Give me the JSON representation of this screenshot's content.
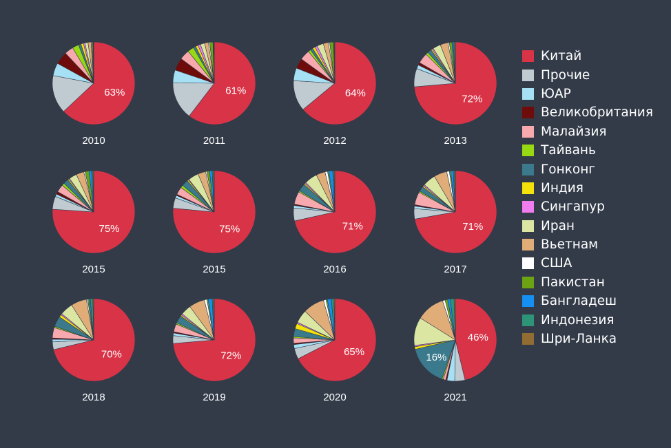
{
  "legend": {
    "items": [
      {
        "name": "Китай",
        "color": "#d93347"
      },
      {
        "name": "Прочие",
        "color": "#bfcbd1"
      },
      {
        "name": "ЮАР",
        "color": "#a6e0f5"
      },
      {
        "name": "Великобритания",
        "color": "#6e0c0c"
      },
      {
        "name": "Малайзия",
        "color": "#f7a9ad"
      },
      {
        "name": "Тайвань",
        "color": "#97d912"
      },
      {
        "name": "Гонконг",
        "color": "#3b7a8c"
      },
      {
        "name": "Индия",
        "color": "#f5e20a"
      },
      {
        "name": "Сингапур",
        "color": "#f07df0"
      },
      {
        "name": "Иран",
        "color": "#dbe6a3"
      },
      {
        "name": "Вьетнам",
        "color": "#e0ad79"
      },
      {
        "name": "США",
        "color": "#ffffff"
      },
      {
        "name": "Пакистан",
        "color": "#6ba312"
      },
      {
        "name": "Бангладеш",
        "color": "#168ff2"
      },
      {
        "name": "Индонезия",
        "color": "#2e9478"
      },
      {
        "name": "Шри-Ланка",
        "color": "#916d34"
      }
    ]
  },
  "chart_data": [
    {
      "type": "pie",
      "label": "2010",
      "categories": [
        "Китай",
        "Прочие",
        "ЮАР",
        "Великобритания",
        "Малайзия",
        "Тайвань",
        "Гонконг",
        "Индия",
        "Сингапур",
        "Иран",
        "Вьетнам",
        "США",
        "Пакистан",
        "Бангладеш",
        "Индонезия",
        "Шри-Ланка"
      ],
      "values": [
        63,
        15,
        5,
        5,
        3.5,
        2.5,
        1,
        1,
        0.6,
        1.2,
        1.2,
        0.3,
        0.4,
        0.1,
        0.1,
        0.1
      ],
      "center_label": "63%"
    },
    {
      "type": "pie",
      "label": "2011",
      "categories": [
        "Китай",
        "Прочие",
        "ЮАР",
        "Великобритания",
        "Малайзия",
        "Тайвань",
        "Гонконг",
        "Индия",
        "Сингапур",
        "Иран",
        "Вьетнам",
        "США",
        "Пакистан",
        "Бангладеш",
        "Индонезия",
        "Шри-Ланка"
      ],
      "values": [
        61,
        15,
        5,
        5,
        4,
        2.5,
        1,
        1,
        1,
        1.7,
        1.5,
        0.5,
        1.3,
        0.2,
        0.2,
        0.1
      ],
      "center_label": "61%"
    },
    {
      "type": "pie",
      "label": "2012",
      "categories": [
        "Китай",
        "Прочие",
        "ЮАР",
        "Великобритания",
        "Малайзия",
        "Тайвань",
        "Гонконг",
        "Индия",
        "Сингапур",
        "Иран",
        "Вьетнам",
        "США",
        "Пакистан",
        "Бангладеш",
        "Индонезия",
        "Шри-Ланка"
      ],
      "values": [
        64,
        12,
        5,
        4,
        4,
        1,
        1,
        1,
        1,
        2.5,
        2,
        0.5,
        1.5,
        0.2,
        0.2,
        0.1
      ],
      "center_label": "64%"
    },
    {
      "type": "pie",
      "label": "2013",
      "categories": [
        "Китай",
        "Прочие",
        "ЮАР",
        "Великобритания",
        "Малайзия",
        "Тайвань",
        "Гонконг",
        "Индия",
        "Сингапур",
        "Иран",
        "Вьетнам",
        "США",
        "Пакистан",
        "Бангладеш",
        "Индонезия",
        "Шри-Ланка"
      ],
      "values": [
        72,
        7,
        1.5,
        1,
        4,
        1,
        1.5,
        0.5,
        0.5,
        3,
        3,
        0.5,
        1,
        0.5,
        0.5,
        0.3
      ],
      "center_label": "72%"
    },
    {
      "type": "pie",
      "label": "2015",
      "categories": [
        "Китай",
        "Прочие",
        "ЮАР",
        "Великобритания",
        "Малайзия",
        "Тайвань",
        "Гонконг",
        "Индия",
        "Сингапур",
        "Иран",
        "Вьетнам",
        "США",
        "Пакистан",
        "Бангладеш",
        "Индонезия",
        "Шри-Ланка"
      ],
      "values": [
        75,
        5,
        1,
        1,
        3,
        1,
        2,
        0.5,
        0.3,
        3,
        3,
        0.5,
        1.5,
        1,
        0.5,
        0.3
      ],
      "center_label": "75%"
    },
    {
      "type": "pie",
      "label": "2015",
      "categories": [
        "Китай",
        "Прочие",
        "ЮАР",
        "Великобритания",
        "Малайзия",
        "Тайвань",
        "Гонконг",
        "Индия",
        "Сингапур",
        "Иран",
        "Вьетнам",
        "США",
        "Пакистан",
        "Бангладеш",
        "Индонезия",
        "Шри-Ланка"
      ],
      "values": [
        75,
        4,
        1,
        0.5,
        3,
        1,
        2.5,
        0.5,
        0.3,
        4,
        3,
        0.5,
        1,
        1,
        0.5,
        0.3
      ],
      "center_label": "75%"
    },
    {
      "type": "pie",
      "label": "2016",
      "categories": [
        "Китай",
        "Прочие",
        "ЮАР",
        "Великобритания",
        "Малайзия",
        "Тайвань",
        "Гонконг",
        "Индия",
        "Сингапур",
        "Иран",
        "Вьетнам",
        "США",
        "Пакистан",
        "Бангладеш",
        "Индонезия",
        "Шри-Ланка"
      ],
      "values": [
        71,
        5,
        1,
        0.5,
        5,
        0.5,
        3,
        0.5,
        0.5,
        5,
        3.5,
        1,
        0.5,
        1.5,
        0.5,
        0.3
      ],
      "center_label": "71%"
    },
    {
      "type": "pie",
      "label": "2017",
      "categories": [
        "Китай",
        "Прочие",
        "ЮАР",
        "Великобритания",
        "Малайзия",
        "Тайвань",
        "Гонконг",
        "Индия",
        "Сингапур",
        "Иран",
        "Вьетнам",
        "США",
        "Пакистан",
        "Бангладеш",
        "Индонезия",
        "Шри-Ланка"
      ],
      "values": [
        71,
        4,
        1,
        0.5,
        5,
        0.5,
        2,
        0.5,
        0.5,
        5,
        5,
        1,
        0.5,
        1,
        0.5,
        0.3
      ],
      "center_label": "71%"
    },
    {
      "type": "pie",
      "label": "2018",
      "categories": [
        "Китай",
        "Прочие",
        "ЮАР",
        "Великобритания",
        "Малайзия",
        "Тайвань",
        "Гонконг",
        "Индия",
        "Сингапур",
        "Иран",
        "Вьетнам",
        "США",
        "Пакистан",
        "Бангладеш",
        "Индонезия",
        "Шри-Ланка"
      ],
      "values": [
        70,
        3,
        1,
        0.5,
        4,
        0.5,
        4,
        1,
        0.5,
        5,
        6,
        0.5,
        0.5,
        0.5,
        1,
        0.3
      ],
      "center_label": "70%"
    },
    {
      "type": "pie",
      "label": "2019",
      "categories": [
        "Китай",
        "Прочие",
        "ЮАР",
        "Великобритания",
        "Малайзия",
        "Тайвань",
        "Гонконг",
        "Индия",
        "Сингапур",
        "Иран",
        "Вьетнам",
        "США",
        "Пакистан",
        "Бангладеш",
        "Индонезия",
        "Шри-Ланка"
      ],
      "values": [
        72,
        3,
        1,
        0.5,
        3,
        0.5,
        3,
        0.5,
        0.5,
        4,
        6,
        1,
        0.5,
        1.5,
        0.5,
        0.3
      ],
      "center_label": "72%"
    },
    {
      "type": "pie",
      "label": "2020",
      "categories": [
        "Китай",
        "Прочие",
        "ЮАР",
        "Великобритания",
        "Малайзия",
        "Тайвань",
        "Гонконг",
        "Индия",
        "Сингапур",
        "Иран",
        "Вьетнам",
        "США",
        "Пакистан",
        "Бангладеш",
        "Индонезия",
        "Шри-Ланка"
      ],
      "values": [
        65,
        4,
        1.5,
        0.5,
        2,
        0.5,
        3,
        2,
        0.5,
        5,
        8,
        1,
        0.5,
        1.5,
        1,
        0.3
      ],
      "center_label": "65%"
    },
    {
      "type": "pie",
      "label": "2021",
      "categories": [
        "Китай",
        "Прочие",
        "ЮАР",
        "Великобритания",
        "Малайзия",
        "Тайвань",
        "Гонконг",
        "Индия",
        "Сингапур",
        "Иран",
        "Вьетнам",
        "США",
        "Пакистан",
        "Бангладеш",
        "Индонезия",
        "Шри-Ланка"
      ],
      "values": [
        46,
        4,
        3,
        0.5,
        1,
        0.5,
        16,
        1,
        0.5,
        11,
        11,
        1,
        1,
        1,
        1.5,
        0.5
      ],
      "center_label": "46%",
      "labels": [
        {
          "category": "Гонконг",
          "text": "16%"
        }
      ]
    }
  ]
}
